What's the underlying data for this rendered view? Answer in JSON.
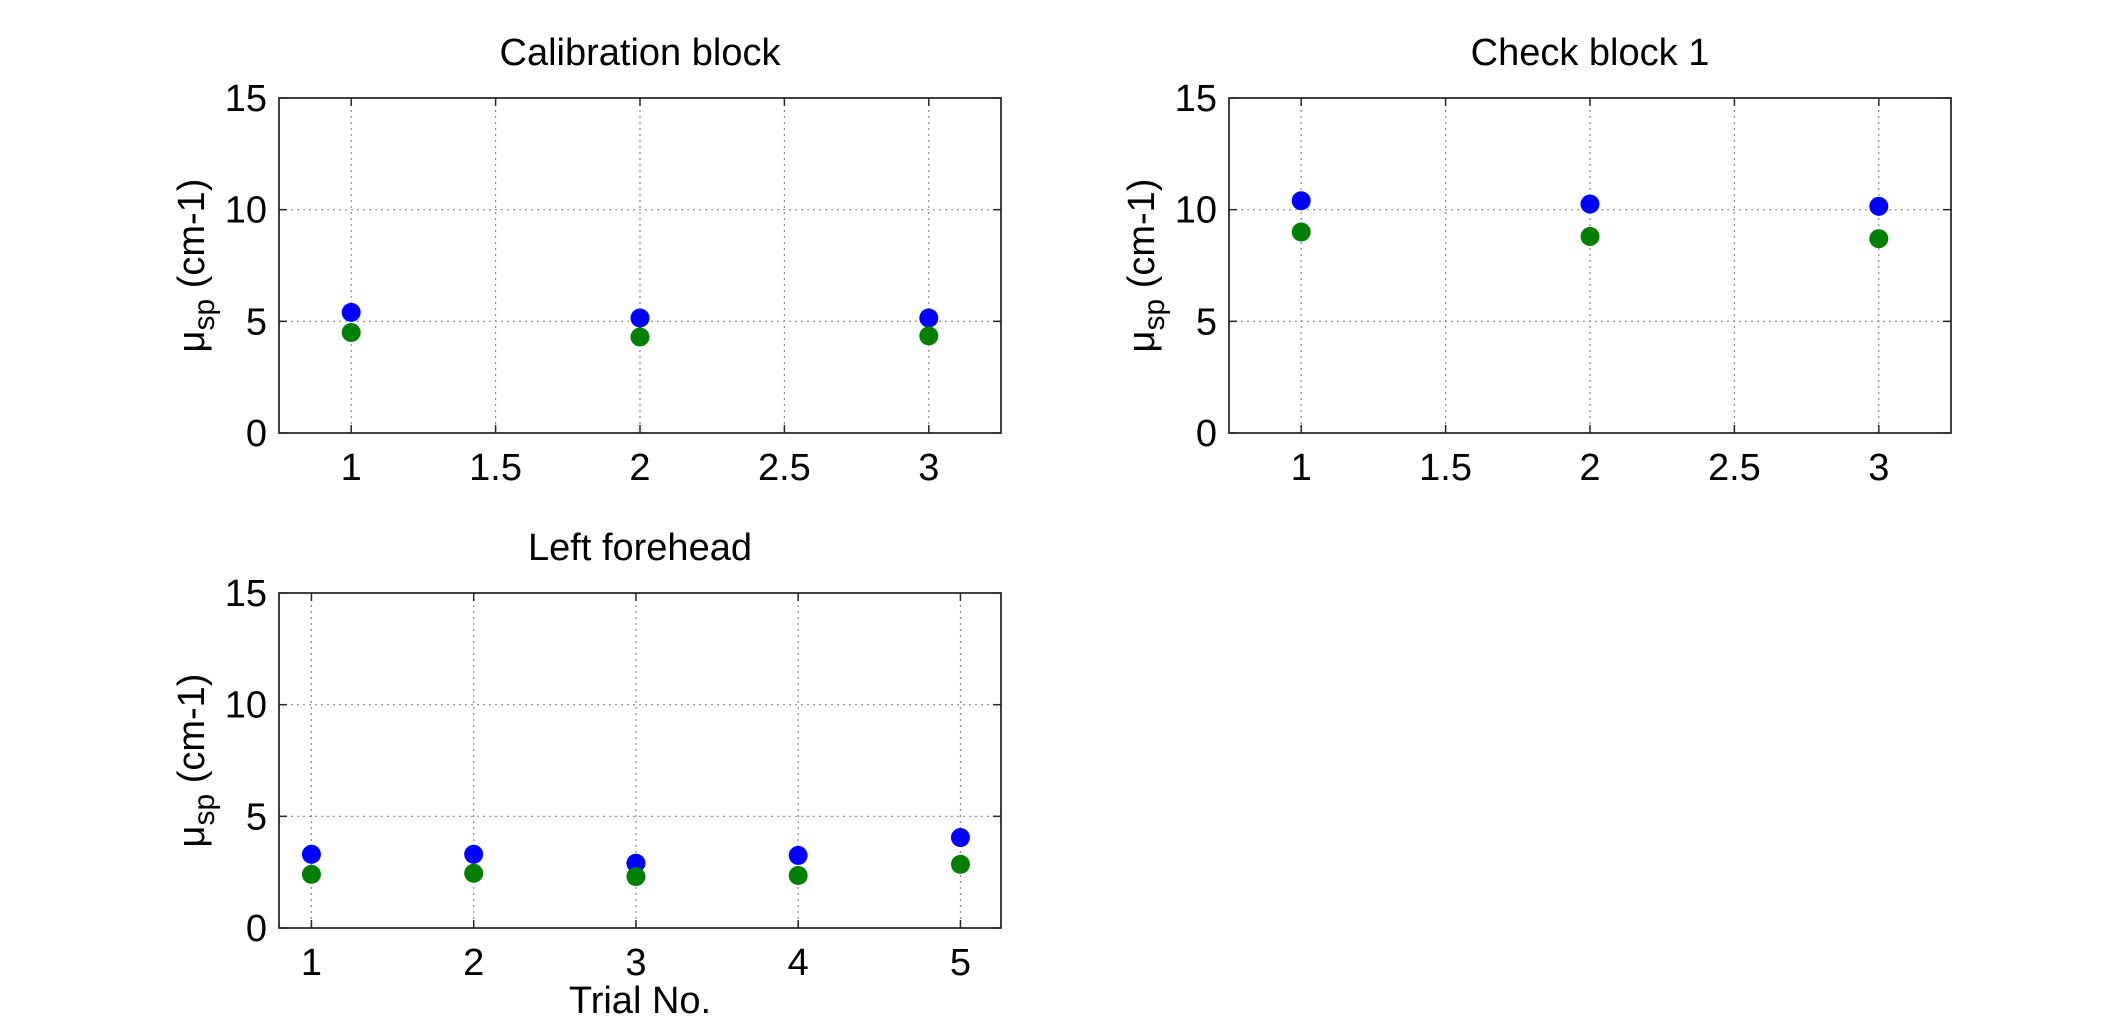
{
  "chart_data": [
    {
      "type": "scatter",
      "title": "Calibration block",
      "ylabel": "μsp (cm-1)",
      "ylabel_main": "μ",
      "ylabel_sub": "sp",
      "ylabel_unit": " (cm-1)",
      "xlabel": "",
      "xlim": [
        0.75,
        3.25
      ],
      "ylim": [
        0,
        15
      ],
      "xticks": [
        1,
        1.5,
        2,
        2.5,
        3
      ],
      "xtick_labels": [
        "1",
        "1.5",
        "2",
        "2.5",
        "3"
      ],
      "yticks": [
        0,
        5,
        10,
        15
      ],
      "ytick_labels": [
        "0",
        "5",
        "10",
        "15"
      ],
      "grid": true,
      "x": [
        1,
        2,
        3
      ],
      "series": [
        {
          "color": "#0000ff",
          "values": [
            5.4,
            5.15,
            5.15
          ]
        },
        {
          "color": "#007f00",
          "values": [
            4.5,
            4.3,
            4.35
          ]
        }
      ]
    },
    {
      "type": "scatter",
      "title": "Check block 1",
      "ylabel": "μsp (cm-1)",
      "ylabel_main": "μ",
      "ylabel_sub": "sp",
      "ylabel_unit": " (cm-1)",
      "xlabel": "",
      "xlim": [
        0.75,
        3.25
      ],
      "ylim": [
        0,
        15
      ],
      "xticks": [
        1,
        1.5,
        2,
        2.5,
        3
      ],
      "xtick_labels": [
        "1",
        "1.5",
        "2",
        "2.5",
        "3"
      ],
      "yticks": [
        0,
        5,
        10,
        15
      ],
      "ytick_labels": [
        "0",
        "5",
        "10",
        "15"
      ],
      "grid": true,
      "x": [
        1,
        2,
        3
      ],
      "series": [
        {
          "color": "#0000ff",
          "values": [
            10.4,
            10.25,
            10.15
          ]
        },
        {
          "color": "#007f00",
          "values": [
            9.0,
            8.8,
            8.7
          ]
        }
      ]
    },
    {
      "type": "scatter",
      "title": "Left forehead",
      "ylabel": "μsp (cm-1)",
      "ylabel_main": "μ",
      "ylabel_sub": "sp",
      "ylabel_unit": " (cm-1)",
      "xlabel": "Trial No.",
      "xlim": [
        0.8,
        5.25
      ],
      "ylim": [
        0,
        15
      ],
      "xticks": [
        1,
        2,
        3,
        4,
        5
      ],
      "xtick_labels": [
        "1",
        "2",
        "3",
        "4",
        "5"
      ],
      "yticks": [
        0,
        5,
        10,
        15
      ],
      "ytick_labels": [
        "0",
        "5",
        "10",
        "15"
      ],
      "grid": true,
      "x": [
        1,
        2,
        3,
        4,
        5
      ],
      "series": [
        {
          "color": "#0000ff",
          "values": [
            3.3,
            3.3,
            2.9,
            3.25,
            4.05
          ]
        },
        {
          "color": "#007f00",
          "values": [
            2.4,
            2.45,
            2.3,
            2.35,
            2.85
          ]
        }
      ]
    }
  ]
}
